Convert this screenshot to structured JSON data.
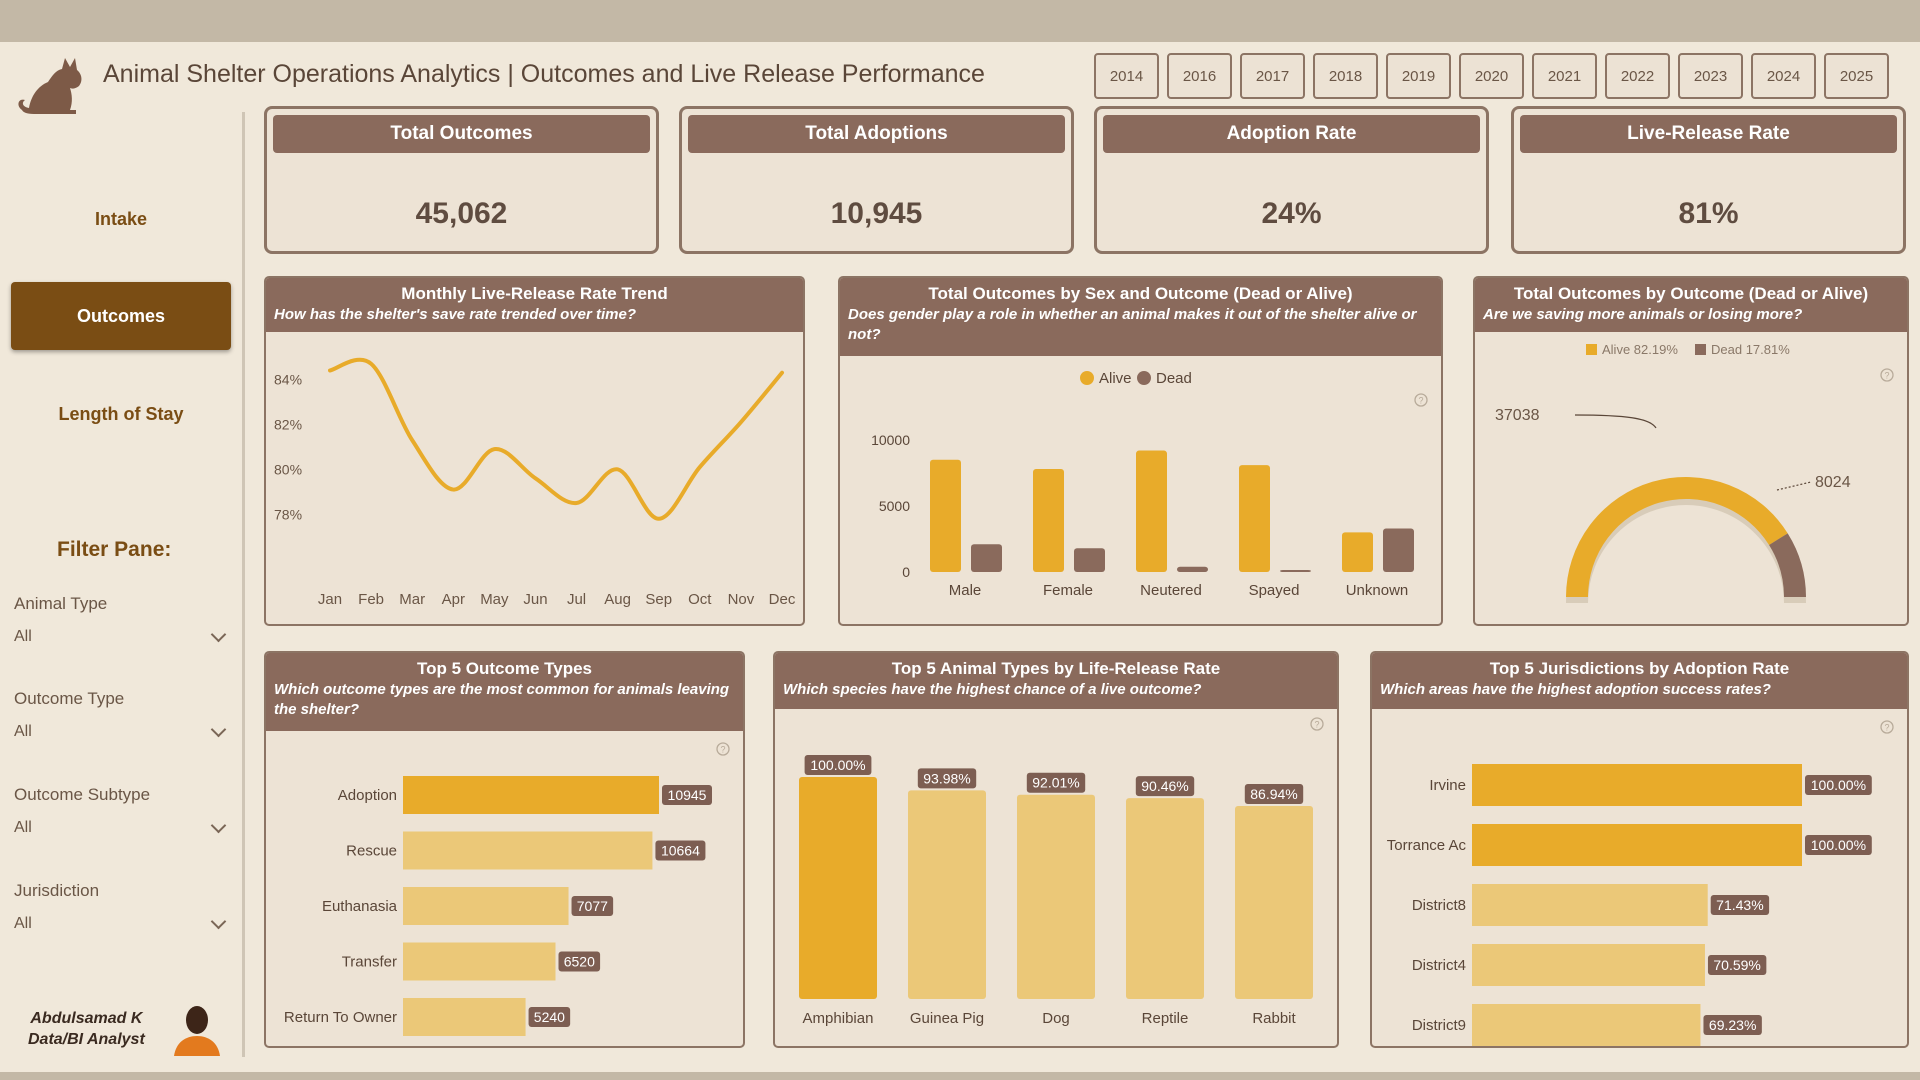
{
  "header": {
    "title": "Animal Shelter Operations Analytics | Outcomes and Live Release Performance",
    "years": [
      "2014",
      "2016",
      "2017",
      "2018",
      "2019",
      "2020",
      "2021",
      "2022",
      "2023",
      "2024",
      "2025"
    ]
  },
  "nav": {
    "intake": "Intake",
    "outcomes": "Outcomes",
    "length_of_stay": "Length of Stay"
  },
  "filters": {
    "title": "Filter Pane:",
    "items": [
      {
        "label": "Animal Type",
        "value": "All"
      },
      {
        "label": "Outcome Type",
        "value": "All"
      },
      {
        "label": "Outcome Subtype",
        "value": "All"
      },
      {
        "label": "Jurisdiction",
        "value": "All"
      }
    ]
  },
  "author": {
    "name": "Abdulsamad K",
    "role": "Data/BI Analyst"
  },
  "kpis": [
    {
      "label": "Total Outcomes",
      "value": "45,062"
    },
    {
      "label": "Total Adoptions",
      "value": "10,945"
    },
    {
      "label": "Adoption Rate",
      "value": "24%"
    },
    {
      "label": "Live-Release Rate",
      "value": "81%"
    }
  ],
  "colors": {
    "gold": "#e8ab2a",
    "gold_light": "#ebc878",
    "brown": "#8a6a5c",
    "label_bg": "#7d5e52"
  },
  "chart_data": [
    {
      "id": "trend",
      "type": "line",
      "title": "Monthly Live-Release Rate Trend",
      "subtitle": "How has the shelter's save rate trended over time?",
      "categories": [
        "Jan",
        "Feb",
        "Mar",
        "Apr",
        "May",
        "Jun",
        "Jul",
        "Aug",
        "Sep",
        "Oct",
        "Nov",
        "Dec"
      ],
      "values": [
        84.4,
        84.7,
        81.3,
        79.1,
        80.9,
        79.6,
        78.5,
        80.0,
        77.8,
        80.1,
        82.1,
        84.3
      ],
      "yticks": [
        "84%",
        "82%",
        "80%",
        "78%"
      ],
      "ylim": [
        77.3,
        85.4
      ]
    },
    {
      "id": "sex",
      "type": "bar",
      "title": "Total Outcomes by Sex and Outcome (Dead or Alive)",
      "subtitle": "Does gender play a role in whether an animal makes it out of the shelter alive or not?",
      "categories": [
        "Male",
        "Female",
        "Neutered",
        "Spayed",
        "Unknown"
      ],
      "series": [
        {
          "name": "Alive",
          "values": [
            8500,
            7800,
            9200,
            8100,
            3000
          ]
        },
        {
          "name": "Dead",
          "values": [
            2100,
            1800,
            400,
            150,
            3300
          ]
        }
      ],
      "yticks": [
        "10000",
        "5000",
        "0"
      ],
      "ylim": [
        0,
        10000
      ]
    },
    {
      "id": "gauge",
      "type": "pie",
      "title": "Total Outcomes by Outcome (Dead or Alive)",
      "subtitle": "Are we saving more animals or losing more?",
      "legend": [
        "Alive 82.19%",
        "Dead 17.81%"
      ],
      "categories": [
        "Alive",
        "Dead"
      ],
      "values": [
        37038,
        8024
      ],
      "labels": [
        "37038",
        "8024"
      ]
    },
    {
      "id": "outcome_types",
      "type": "bar",
      "orientation": "horizontal",
      "title": "Top 5 Outcome Types",
      "subtitle": "Which outcome types are the most common for animals leaving the shelter?",
      "categories": [
        "Adoption",
        "Rescue",
        "Euthanasia",
        "Transfer",
        "Return To Owner"
      ],
      "values": [
        10945,
        10664,
        7077,
        6520,
        5240
      ],
      "labels": [
        "10945",
        "10664",
        "7077",
        "6520",
        "5240"
      ]
    },
    {
      "id": "animal_types",
      "type": "bar",
      "title": "Top 5 Animal Types by Life-Release Rate",
      "subtitle": "Which species have the highest chance of a live outcome?",
      "categories": [
        "Amphibian",
        "Guinea Pig",
        "Dog",
        "Reptile",
        "Rabbit"
      ],
      "values": [
        100.0,
        93.98,
        92.01,
        90.46,
        86.94
      ],
      "labels": [
        "100.00%",
        "93.98%",
        "92.01%",
        "90.46%",
        "86.94%"
      ]
    },
    {
      "id": "jurisdictions",
      "type": "bar",
      "orientation": "horizontal",
      "title": "Top 5 Jurisdictions by Adoption Rate",
      "subtitle": "Which areas have the highest adoption success rates?",
      "categories": [
        "Irvine",
        "Torrance Ac",
        "District8",
        "District4",
        "District9"
      ],
      "values": [
        100.0,
        100.0,
        71.43,
        70.59,
        69.23
      ],
      "labels": [
        "100.00%",
        "100.00%",
        "71.43%",
        "70.59%",
        "69.23%"
      ]
    }
  ]
}
